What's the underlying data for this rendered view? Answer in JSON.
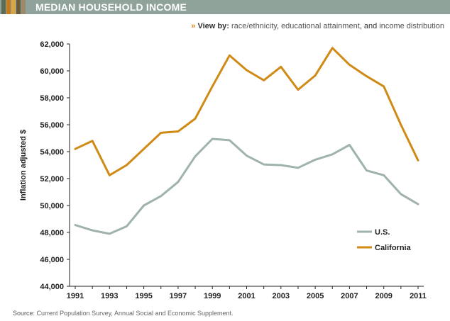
{
  "header": {
    "title": "MEDIAN HOUSEHOLD INCOME",
    "swatch_colors": [
      "#5b6b55",
      "#c77a1a",
      "#d6a64a",
      "#6a5a3a",
      "#9c8b6a"
    ],
    "bar_color": "#8fa39b"
  },
  "view_by": {
    "label": "View by:",
    "links": [
      "race/ethnicity",
      "educational attainment",
      "income distribution"
    ],
    "sep_1": ", ",
    "sep_2": ", and "
  },
  "source": {
    "label": "Source:",
    "text": "Current Population Survey, Annual Social and Economic Supplement."
  },
  "chart_data": {
    "type": "line",
    "ylabel": "Inflation adjusted $",
    "xlabel": "",
    "x": [
      1991,
      1992,
      1993,
      1994,
      1995,
      1996,
      1997,
      1998,
      1999,
      2000,
      2001,
      2002,
      2003,
      2004,
      2005,
      2006,
      2007,
      2008,
      2009,
      2010,
      2011
    ],
    "x_tick_labels": [
      "1991",
      "1993",
      "1995",
      "1997",
      "1999",
      "2001",
      "2003",
      "2005",
      "2007",
      "2009",
      "2011"
    ],
    "y_tick_labels": [
      "44,000",
      "46,000",
      "48,000",
      "50,000",
      "52,000",
      "54,000",
      "56,000",
      "58,000",
      "60,000",
      "62,000"
    ],
    "ylim": [
      44000,
      62000
    ],
    "grid": false,
    "legend_position": "bottom-right",
    "series": [
      {
        "name": "U.S.",
        "color": "#9fb3ab",
        "values": [
          48550,
          48150,
          47900,
          48450,
          50000,
          50700,
          51750,
          53650,
          54950,
          54850,
          53700,
          53050,
          53000,
          52800,
          53400,
          53800,
          54500,
          52600,
          52250,
          50850,
          50100
        ]
      },
      {
        "name": "California",
        "color": "#d08a16",
        "values": [
          54200,
          54800,
          52250,
          53000,
          54200,
          55400,
          55500,
          56450,
          58850,
          61150,
          60050,
          59300,
          60300,
          58600,
          59650,
          61700,
          60450,
          59600,
          58850,
          56000,
          53350
        ]
      }
    ]
  }
}
